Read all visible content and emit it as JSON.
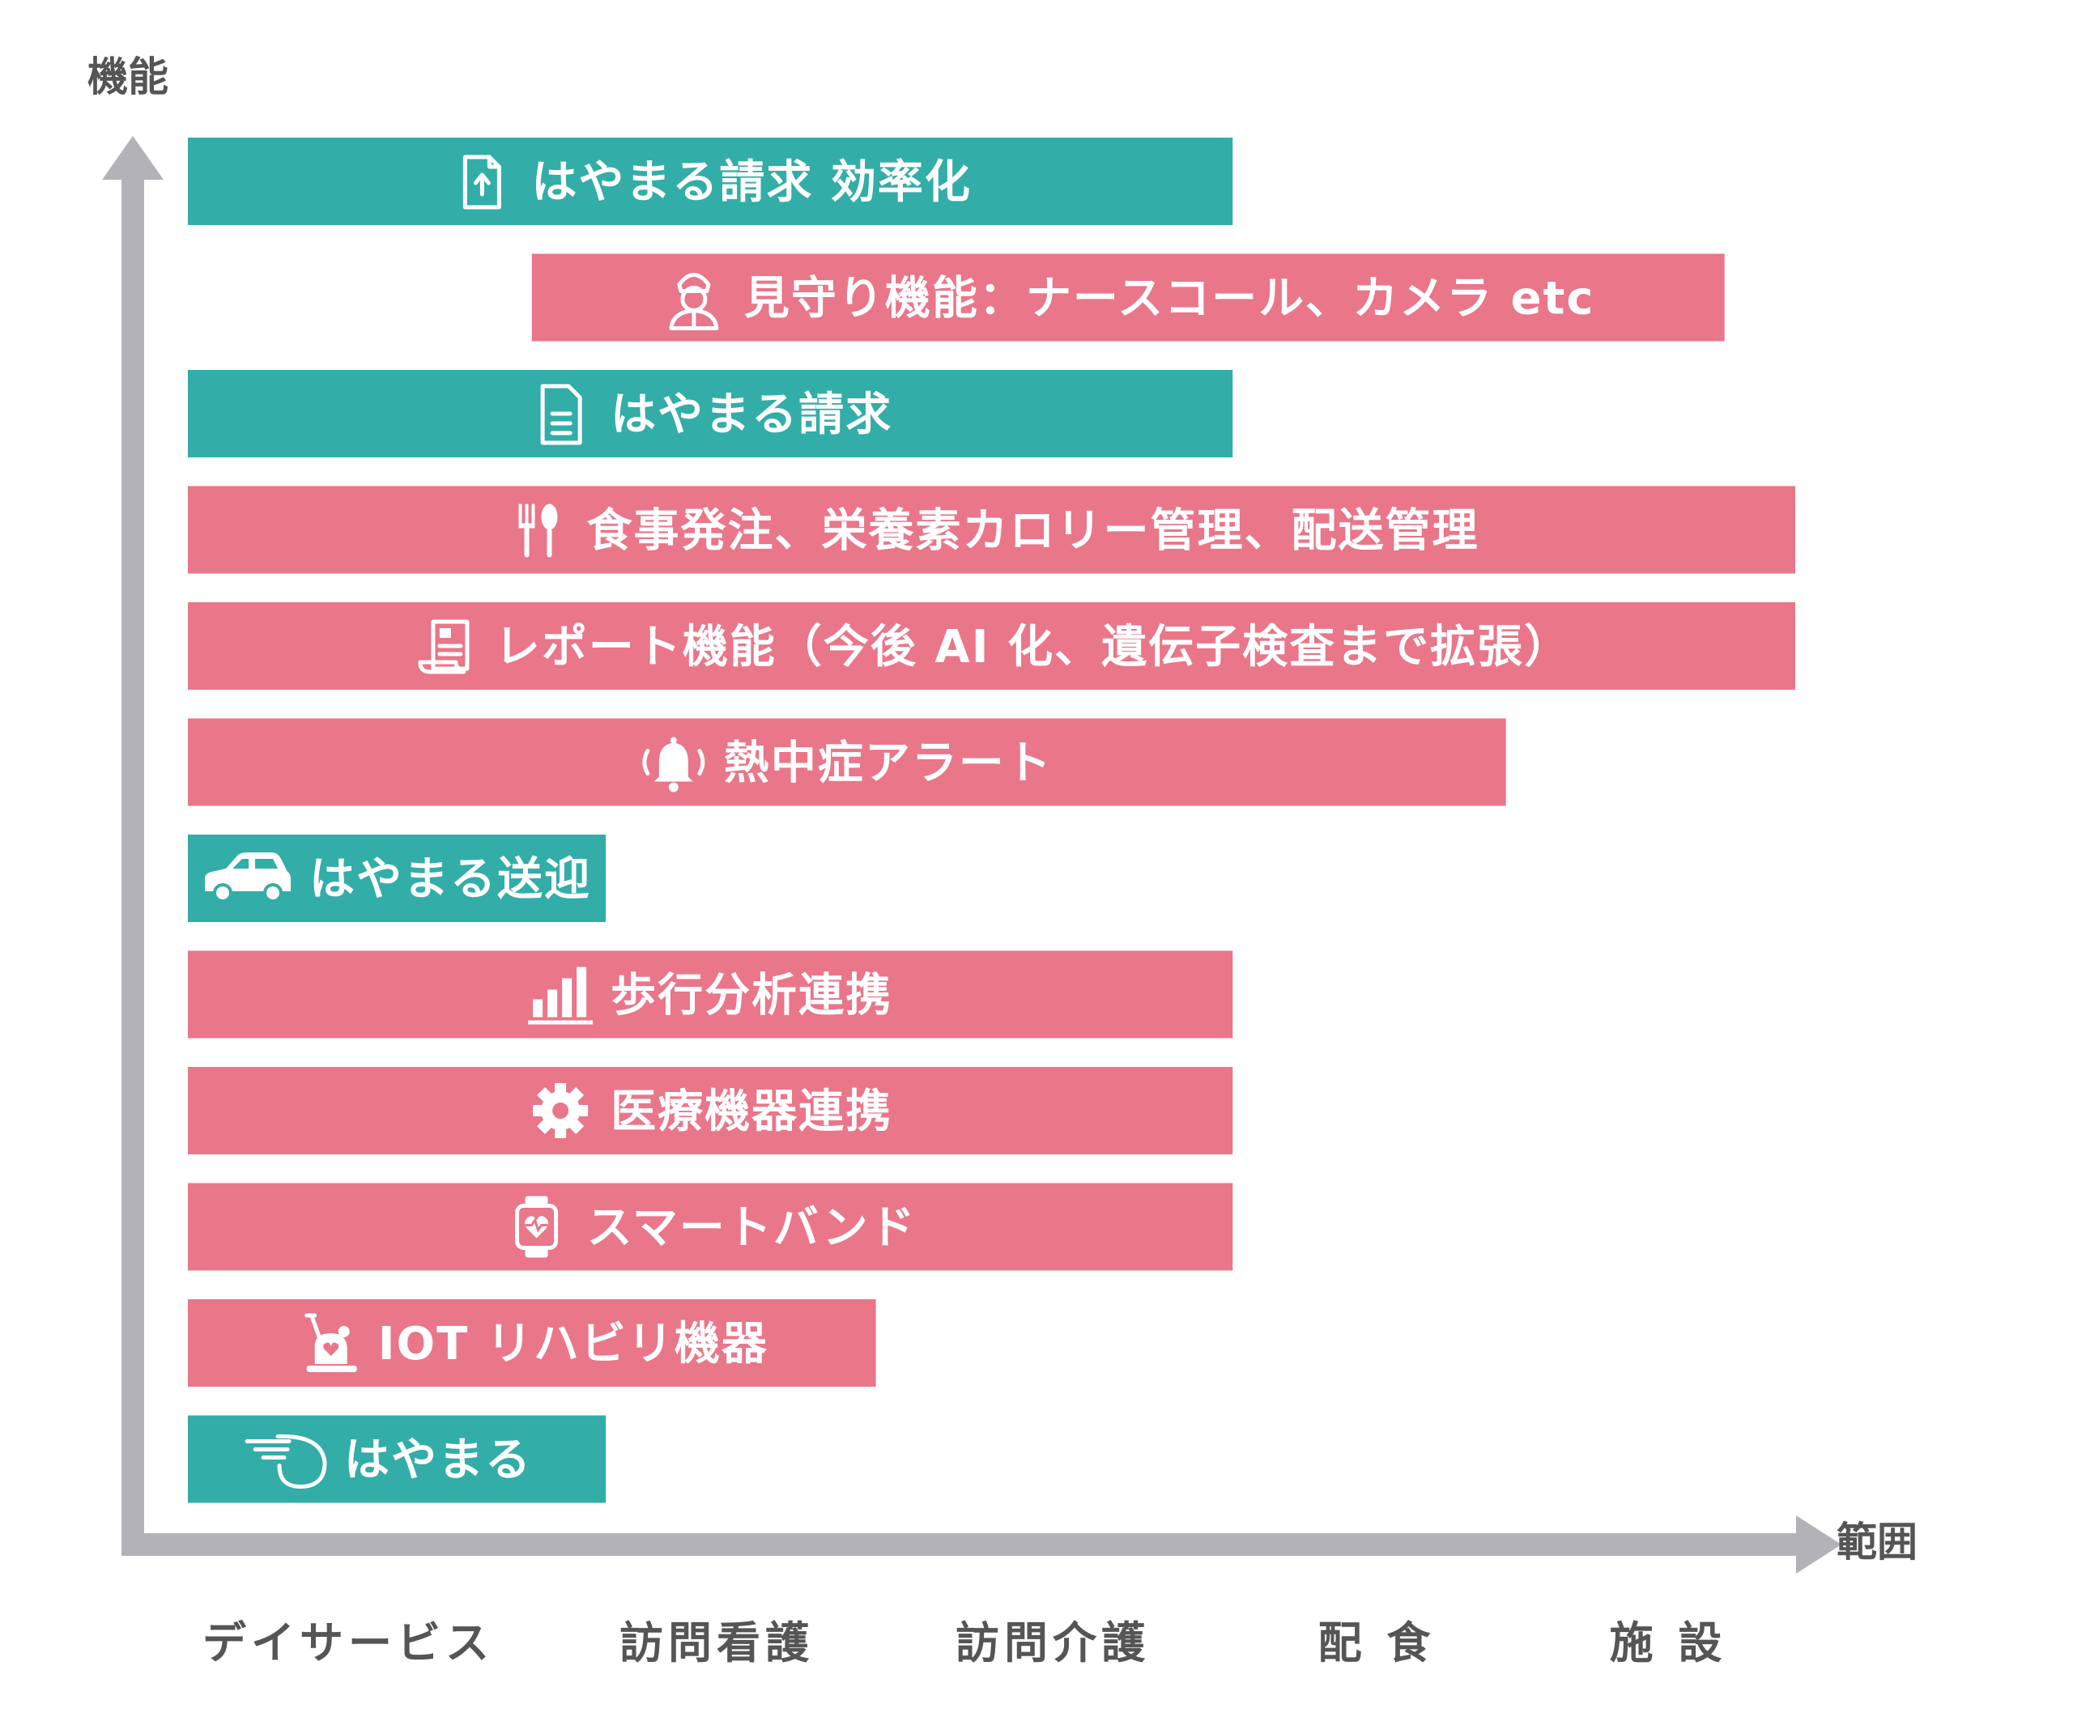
{
  "chart_data": {
    "type": "bar",
    "orientation": "horizontal-range",
    "xlabel": "範囲",
    "ylabel": "機能",
    "categories": [
      "デイサービス",
      "訪問看護",
      "訪問介護",
      "配 食",
      "施 設"
    ],
    "colors": {
      "teal": "#33ADA8",
      "pink": "#E97689",
      "axis": "#B3B2B7"
    },
    "bars": [
      {
        "label": "はやまる請求 効率化",
        "start": 0,
        "end": 3.25,
        "color": "teal",
        "icon": "file-upload-icon"
      },
      {
        "label": "見守り機能：ナースコール、カメラ etc",
        "start": 1.07,
        "end": 4.78,
        "color": "pink",
        "icon": "nurse-icon"
      },
      {
        "label": "はやまる請求",
        "start": 0,
        "end": 3.25,
        "color": "teal",
        "icon": "document-icon"
      },
      {
        "label": "食事発注、栄養素カロリー管理、配送管理",
        "start": 0,
        "end": 5.0,
        "color": "pink",
        "icon": "fork-spoon-icon"
      },
      {
        "label": "レポート機能（今後 AI 化、遺伝子検査まで拡張）",
        "start": 0,
        "end": 5.0,
        "color": "pink",
        "icon": "report-scroll-icon"
      },
      {
        "label": "熱中症アラート",
        "start": 0,
        "end": 4.1,
        "color": "pink",
        "icon": "alarm-bell-icon"
      },
      {
        "label": "はやまる送迎",
        "start": 0,
        "end": 1.3,
        "color": "teal",
        "icon": "car-icon"
      },
      {
        "label": "歩行分析連携",
        "start": 0,
        "end": 3.25,
        "color": "pink",
        "icon": "bar-chart-icon"
      },
      {
        "label": "医療機器連携",
        "start": 0,
        "end": 3.25,
        "color": "pink",
        "icon": "gear-icon"
      },
      {
        "label": "スマートバンド",
        "start": 0,
        "end": 3.25,
        "color": "pink",
        "icon": "smartwatch-icon"
      },
      {
        "label": "IOT リハビリ機器",
        "start": 0,
        "end": 2.14,
        "color": "pink",
        "icon": "exercise-bike-icon"
      },
      {
        "label": "はやまる",
        "start": 0,
        "end": 1.3,
        "color": "teal",
        "icon": "hayamaru-logo-icon"
      }
    ]
  }
}
